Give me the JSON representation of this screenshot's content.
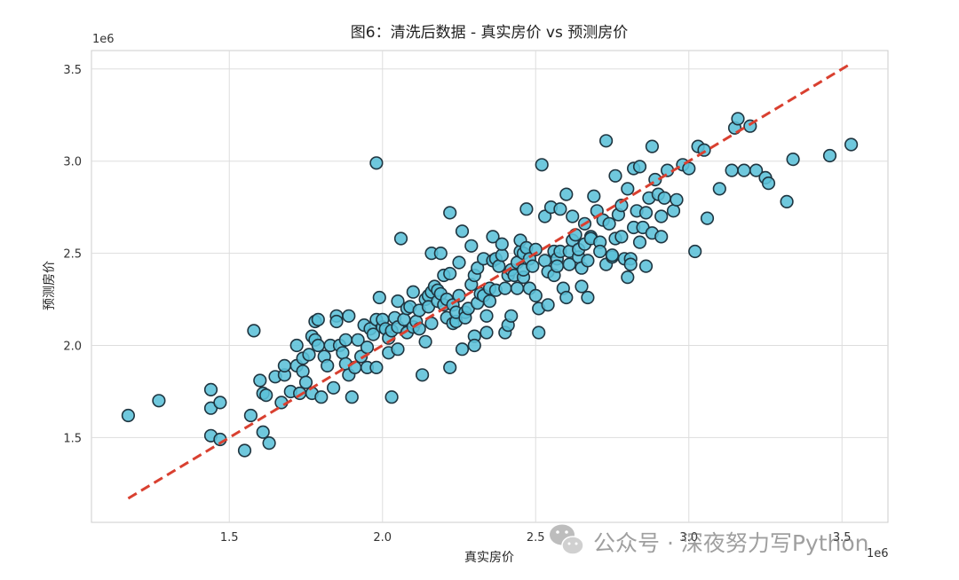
{
  "chart_data": {
    "type": "scatter",
    "title": "图6：清洗后数据 - 真实房价 vs 预测房价",
    "xlabel": "真实房价",
    "ylabel": "预测房价",
    "x_offset_label": "1e6",
    "y_offset_label": "1e6",
    "xlim": [
      1.05,
      3.65
    ],
    "ylim": [
      1.04,
      3.6
    ],
    "x_ticks": [
      1.5,
      2.0,
      2.5,
      3.0,
      3.5
    ],
    "x_tick_labels": [
      "1.5",
      "2.0",
      "2.5",
      "3.0",
      "3.5"
    ],
    "y_ticks": [
      1.5,
      2.0,
      2.5,
      3.0,
      3.5
    ],
    "y_tick_labels": [
      "1.5",
      "2.0",
      "2.5",
      "3.0",
      "3.5"
    ],
    "grid": true,
    "point_color": "#5bc0d8",
    "point_edge_color": "#1f3540",
    "reference_line": {
      "x": [
        1.17,
        3.53
      ],
      "y": [
        1.17,
        3.53
      ],
      "color": "#d94030",
      "style": "dashed"
    },
    "points": [
      [
        1.17,
        1.62
      ],
      [
        1.27,
        1.7
      ],
      [
        1.44,
        1.76
      ],
      [
        1.44,
        1.66
      ],
      [
        1.47,
        1.69
      ],
      [
        1.44,
        1.51
      ],
      [
        1.47,
        1.49
      ],
      [
        1.55,
        1.43
      ],
      [
        1.57,
        1.62
      ],
      [
        1.58,
        2.08
      ],
      [
        1.6,
        1.81
      ],
      [
        1.61,
        1.74
      ],
      [
        1.62,
        1.73
      ],
      [
        1.61,
        1.53
      ],
      [
        1.63,
        1.47
      ],
      [
        1.65,
        1.83
      ],
      [
        1.67,
        1.69
      ],
      [
        1.68,
        1.84
      ],
      [
        1.68,
        1.89
      ],
      [
        1.7,
        1.75
      ],
      [
        1.72,
        2.0
      ],
      [
        1.72,
        1.89
      ],
      [
        1.73,
        1.74
      ],
      [
        1.74,
        1.86
      ],
      [
        1.74,
        1.93
      ],
      [
        1.75,
        1.8
      ],
      [
        1.76,
        1.95
      ],
      [
        1.77,
        1.74
      ],
      [
        1.77,
        2.05
      ],
      [
        1.78,
        2.03
      ],
      [
        1.78,
        2.13
      ],
      [
        1.79,
        2.14
      ],
      [
        1.79,
        2.0
      ],
      [
        1.8,
        1.72
      ],
      [
        1.81,
        1.94
      ],
      [
        1.82,
        1.89
      ],
      [
        1.83,
        2.0
      ],
      [
        1.84,
        1.77
      ],
      [
        1.85,
        2.16
      ],
      [
        1.85,
        2.13
      ],
      [
        1.86,
        2.0
      ],
      [
        1.87,
        1.96
      ],
      [
        1.88,
        2.03
      ],
      [
        1.88,
        1.9
      ],
      [
        1.89,
        1.84
      ],
      [
        1.89,
        2.16
      ],
      [
        1.9,
        1.72
      ],
      [
        1.91,
        1.88
      ],
      [
        1.92,
        2.03
      ],
      [
        1.93,
        1.94
      ],
      [
        1.94,
        2.11
      ],
      [
        1.95,
        1.99
      ],
      [
        1.95,
        1.88
      ],
      [
        1.96,
        2.09
      ],
      [
        1.97,
        2.06
      ],
      [
        1.98,
        2.14
      ],
      [
        1.98,
        1.88
      ],
      [
        1.98,
        2.99
      ],
      [
        1.99,
        2.26
      ],
      [
        2.0,
        2.1
      ],
      [
        2.0,
        2.14
      ],
      [
        2.01,
        2.09
      ],
      [
        2.02,
        1.96
      ],
      [
        2.02,
        2.04
      ],
      [
        2.03,
        1.72
      ],
      [
        2.03,
        2.08
      ],
      [
        2.04,
        2.15
      ],
      [
        2.05,
        2.24
      ],
      [
        2.05,
        2.1
      ],
      [
        2.05,
        1.98
      ],
      [
        2.06,
        2.58
      ],
      [
        2.07,
        2.14
      ],
      [
        2.08,
        2.07
      ],
      [
        2.08,
        2.2
      ],
      [
        2.09,
        2.21
      ],
      [
        2.1,
        2.29
      ],
      [
        2.1,
        2.1
      ],
      [
        2.11,
        2.13
      ],
      [
        2.12,
        2.09
      ],
      [
        2.12,
        2.19
      ],
      [
        2.13,
        1.84
      ],
      [
        2.14,
        2.02
      ],
      [
        2.14,
        2.25
      ],
      [
        2.15,
        2.27
      ],
      [
        2.15,
        2.21
      ],
      [
        2.16,
        2.12
      ],
      [
        2.16,
        2.29
      ],
      [
        2.16,
        2.5
      ],
      [
        2.17,
        2.32
      ],
      [
        2.18,
        2.24
      ],
      [
        2.18,
        2.3
      ],
      [
        2.19,
        2.28
      ],
      [
        2.19,
        2.5
      ],
      [
        2.2,
        2.22
      ],
      [
        2.2,
        2.38
      ],
      [
        2.21,
        2.15
      ],
      [
        2.21,
        2.25
      ],
      [
        2.22,
        1.88
      ],
      [
        2.22,
        2.72
      ],
      [
        2.22,
        2.39
      ],
      [
        2.23,
        2.22
      ],
      [
        2.23,
        2.12
      ],
      [
        2.24,
        2.13
      ],
      [
        2.24,
        2.18
      ],
      [
        2.25,
        2.45
      ],
      [
        2.25,
        2.27
      ],
      [
        2.26,
        1.98
      ],
      [
        2.26,
        2.62
      ],
      [
        2.27,
        2.18
      ],
      [
        2.27,
        2.15
      ],
      [
        2.28,
        2.2
      ],
      [
        2.29,
        2.54
      ],
      [
        2.29,
        2.33
      ],
      [
        2.3,
        2.05
      ],
      [
        2.3,
        2.0
      ],
      [
        2.3,
        2.38
      ],
      [
        2.31,
        2.23
      ],
      [
        2.31,
        2.42
      ],
      [
        2.32,
        2.28
      ],
      [
        2.33,
        2.47
      ],
      [
        2.33,
        2.27
      ],
      [
        2.34,
        2.07
      ],
      [
        2.34,
        2.16
      ],
      [
        2.35,
        2.24
      ],
      [
        2.35,
        2.31
      ],
      [
        2.36,
        2.46
      ],
      [
        2.36,
        2.59
      ],
      [
        2.37,
        2.3
      ],
      [
        2.37,
        2.47
      ],
      [
        2.38,
        2.43
      ],
      [
        2.39,
        2.49
      ],
      [
        2.39,
        2.55
      ],
      [
        2.4,
        2.07
      ],
      [
        2.4,
        2.31
      ],
      [
        2.41,
        2.38
      ],
      [
        2.41,
        2.11
      ],
      [
        2.42,
        2.41
      ],
      [
        2.42,
        2.16
      ],
      [
        2.43,
        2.38
      ],
      [
        2.44,
        2.31
      ],
      [
        2.44,
        2.45
      ],
      [
        2.45,
        2.51
      ],
      [
        2.45,
        2.57
      ],
      [
        2.46,
        2.37
      ],
      [
        2.46,
        2.41
      ],
      [
        2.46,
        2.5
      ],
      [
        2.47,
        2.74
      ],
      [
        2.47,
        2.53
      ],
      [
        2.48,
        2.31
      ],
      [
        2.48,
        2.47
      ],
      [
        2.49,
        2.43
      ],
      [
        2.5,
        2.27
      ],
      [
        2.5,
        2.52
      ],
      [
        2.51,
        2.2
      ],
      [
        2.51,
        2.07
      ],
      [
        2.52,
        2.98
      ],
      [
        2.53,
        2.46
      ],
      [
        2.53,
        2.7
      ],
      [
        2.54,
        2.22
      ],
      [
        2.54,
        2.4
      ],
      [
        2.55,
        2.75
      ],
      [
        2.56,
        2.38
      ],
      [
        2.56,
        2.51
      ],
      [
        2.57,
        2.47
      ],
      [
        2.57,
        2.43
      ],
      [
        2.58,
        2.74
      ],
      [
        2.58,
        2.51
      ],
      [
        2.59,
        2.31
      ],
      [
        2.6,
        2.26
      ],
      [
        2.6,
        2.82
      ],
      [
        2.61,
        2.44
      ],
      [
        2.61,
        2.51
      ],
      [
        2.62,
        2.57
      ],
      [
        2.62,
        2.7
      ],
      [
        2.63,
        2.6
      ],
      [
        2.64,
        2.48
      ],
      [
        2.64,
        2.52
      ],
      [
        2.65,
        2.42
      ],
      [
        2.65,
        2.32
      ],
      [
        2.66,
        2.66
      ],
      [
        2.66,
        2.55
      ],
      [
        2.67,
        2.46
      ],
      [
        2.67,
        2.26
      ],
      [
        2.68,
        2.59
      ],
      [
        2.68,
        2.58
      ],
      [
        2.69,
        2.81
      ],
      [
        2.7,
        2.73
      ],
      [
        2.71,
        2.56
      ],
      [
        2.71,
        2.51
      ],
      [
        2.72,
        2.68
      ],
      [
        2.73,
        3.11
      ],
      [
        2.73,
        2.44
      ],
      [
        2.74,
        2.66
      ],
      [
        2.75,
        2.48
      ],
      [
        2.75,
        2.49
      ],
      [
        2.76,
        2.92
      ],
      [
        2.76,
        2.58
      ],
      [
        2.77,
        2.71
      ],
      [
        2.78,
        2.59
      ],
      [
        2.78,
        2.76
      ],
      [
        2.79,
        2.47
      ],
      [
        2.8,
        2.85
      ],
      [
        2.8,
        2.37
      ],
      [
        2.81,
        2.47
      ],
      [
        2.81,
        2.44
      ],
      [
        2.82,
        2.64
      ],
      [
        2.82,
        2.96
      ],
      [
        2.83,
        2.73
      ],
      [
        2.84,
        2.56
      ],
      [
        2.84,
        2.97
      ],
      [
        2.85,
        2.64
      ],
      [
        2.86,
        2.72
      ],
      [
        2.86,
        2.43
      ],
      [
        2.87,
        2.8
      ],
      [
        2.88,
        3.08
      ],
      [
        2.88,
        2.61
      ],
      [
        2.89,
        2.9
      ],
      [
        2.9,
        2.82
      ],
      [
        2.91,
        2.7
      ],
      [
        2.91,
        2.59
      ],
      [
        2.92,
        2.8
      ],
      [
        2.93,
        2.95
      ],
      [
        2.95,
        2.73
      ],
      [
        2.96,
        2.79
      ],
      [
        2.98,
        2.98
      ],
      [
        3.0,
        2.96
      ],
      [
        3.02,
        2.51
      ],
      [
        3.03,
        3.08
      ],
      [
        3.05,
        3.06
      ],
      [
        3.06,
        2.69
      ],
      [
        3.1,
        2.85
      ],
      [
        3.14,
        2.95
      ],
      [
        3.15,
        3.18
      ],
      [
        3.16,
        3.23
      ],
      [
        3.18,
        2.95
      ],
      [
        3.2,
        3.19
      ],
      [
        3.22,
        2.95
      ],
      [
        3.25,
        2.91
      ],
      [
        3.26,
        2.88
      ],
      [
        3.32,
        2.78
      ],
      [
        3.34,
        3.01
      ],
      [
        3.46,
        3.03
      ],
      [
        3.53,
        3.09
      ]
    ]
  },
  "watermark": {
    "text": "公众号 · 深夜努力写Python",
    "icon": "wechat-icon"
  }
}
